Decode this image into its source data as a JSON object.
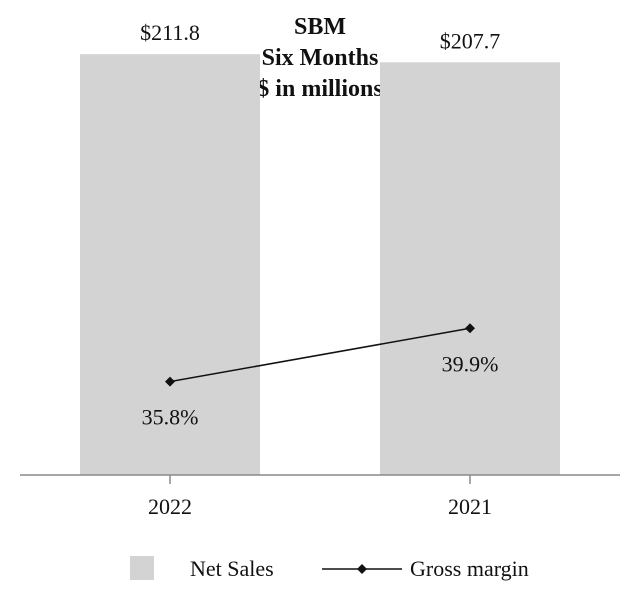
{
  "chart_data": {
    "type": "bar",
    "title_lines": [
      "SBM",
      "Six Months",
      "($ in millions)"
    ],
    "categories": [
      "2022",
      "2021"
    ],
    "series": [
      {
        "name": "Net Sales",
        "kind": "bar",
        "values": [
          211.8,
          207.7
        ],
        "labels": [
          "$211.8",
          "$207.7"
        ],
        "color": "#d3d3d3"
      },
      {
        "name": "Gross margin",
        "kind": "line",
        "marker": "diamond",
        "values": [
          35.8,
          39.9
        ],
        "labels": [
          "35.8%",
          "39.9%"
        ],
        "unit": "%",
        "color": "#111111"
      }
    ],
    "bar_axis_range": [
      0,
      230
    ],
    "line_axis_range": [
      28,
      45
    ],
    "grid": false,
    "legend_position": "bottom"
  }
}
